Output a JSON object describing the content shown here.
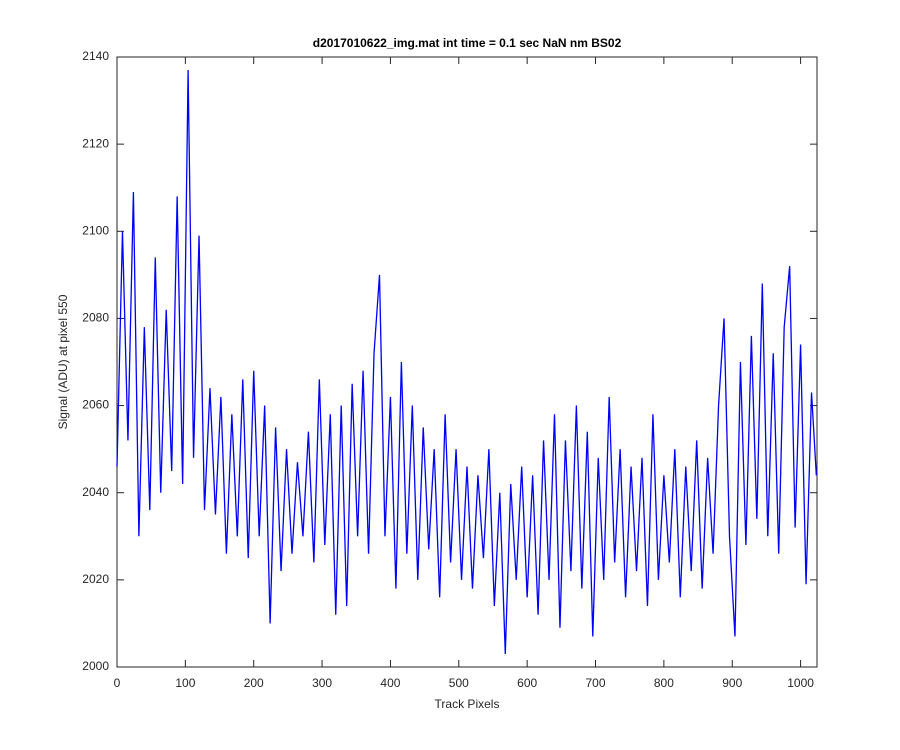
{
  "chart_data": {
    "type": "line",
    "title": "d2017010622_img.mat int time = 0.1 sec  NaN nm BS02",
    "x_label": "Track Pixels",
    "y_label": "Signal (ADU) at pixel 550",
    "xlim": [
      0,
      1024
    ],
    "ylim": [
      2000,
      2140
    ],
    "xticks": [
      0,
      100,
      200,
      300,
      400,
      500,
      600,
      700,
      800,
      900,
      1000
    ],
    "yticks": [
      2000,
      2020,
      2040,
      2060,
      2080,
      2100,
      2120,
      2140
    ],
    "grid": false,
    "series": [
      {
        "color": "#0000ff",
        "x": [
          0,
          8,
          16,
          24,
          32,
          40,
          48,
          56,
          64,
          72,
          80,
          88,
          96,
          104,
          112,
          120,
          128,
          136,
          144,
          152,
          160,
          168,
          176,
          184,
          192,
          200,
          208,
          216,
          224,
          232,
          240,
          248,
          256,
          264,
          272,
          280,
          288,
          296,
          304,
          312,
          320,
          328,
          336,
          344,
          352,
          360,
          368,
          376,
          384,
          392,
          400,
          408,
          416,
          424,
          432,
          440,
          448,
          456,
          464,
          472,
          480,
          488,
          496,
          504,
          512,
          520,
          528,
          536,
          544,
          552,
          560,
          568,
          576,
          584,
          592,
          600,
          608,
          616,
          624,
          632,
          640,
          648,
          656,
          664,
          672,
          680,
          688,
          696,
          704,
          712,
          720,
          728,
          736,
          744,
          752,
          760,
          768,
          776,
          784,
          792,
          800,
          808,
          816,
          824,
          832,
          840,
          848,
          856,
          864,
          872,
          880,
          888,
          896,
          904,
          912,
          920,
          928,
          936,
          944,
          952,
          960,
          968,
          976,
          984,
          992,
          1000,
          1008,
          1016,
          1023
        ],
        "values": [
          2046,
          2100,
          2052,
          2109,
          2030,
          2078,
          2036,
          2094,
          2040,
          2082,
          2045,
          2108,
          2042,
          2137,
          2048,
          2099,
          2036,
          2064,
          2035,
          2062,
          2026,
          2058,
          2030,
          2066,
          2025,
          2068,
          2030,
          2060,
          2010,
          2055,
          2022,
          2050,
          2026,
          2047,
          2030,
          2054,
          2024,
          2066,
          2028,
          2058,
          2012,
          2060,
          2014,
          2065,
          2030,
          2068,
          2026,
          2072,
          2090,
          2030,
          2062,
          2018,
          2070,
          2026,
          2060,
          2020,
          2055,
          2027,
          2050,
          2016,
          2058,
          2024,
          2050,
          2020,
          2046,
          2018,
          2044,
          2025,
          2050,
          2014,
          2040,
          2003,
          2042,
          2020,
          2046,
          2016,
          2044,
          2012,
          2052,
          2020,
          2058,
          2009,
          2052,
          2022,
          2060,
          2018,
          2054,
          2007,
          2048,
          2020,
          2062,
          2024,
          2050,
          2016,
          2046,
          2022,
          2048,
          2014,
          2058,
          2020,
          2044,
          2024,
          2050,
          2016,
          2046,
          2022,
          2052,
          2018,
          2048,
          2026,
          2060,
          2080,
          2030,
          2007,
          2070,
          2028,
          2076,
          2034,
          2088,
          2030,
          2072,
          2026,
          2078,
          2092,
          2032,
          2074,
          2019,
          2063,
          2044
        ]
      }
    ]
  }
}
